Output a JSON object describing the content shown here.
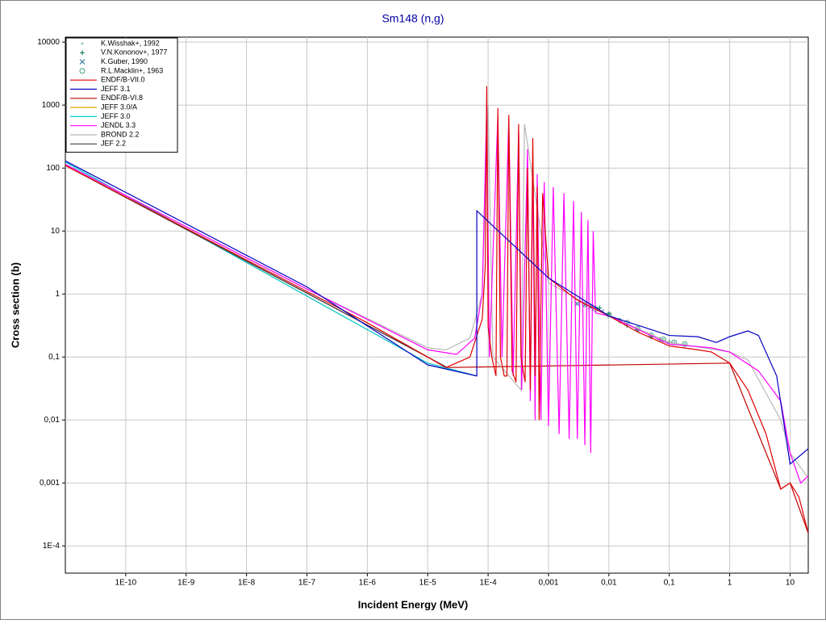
{
  "chart_data": {
    "type": "line",
    "title": "Sm148 (n,g)",
    "x_label": "Incident Energy (MeV)",
    "y_label": "Cross section (b)",
    "xscale": "log",
    "yscale": "log",
    "grid": true,
    "legend": "upper left",
    "xlim": [
      1e-11,
      20
    ],
    "ylim": [
      3.7e-05,
      12000
    ],
    "xticks": [
      {
        "value": 1e-10,
        "label": "1E-10"
      },
      {
        "value": 1e-09,
        "label": "1E-9"
      },
      {
        "value": 1e-08,
        "label": "1E-8"
      },
      {
        "value": 1e-07,
        "label": "1E-7"
      },
      {
        "value": 1e-06,
        "label": "1E-6"
      },
      {
        "value": 1e-05,
        "label": "1E-5"
      },
      {
        "value": 0.0001,
        "label": "1E-4"
      },
      {
        "value": 0.001,
        "label": "0,001"
      },
      {
        "value": 0.01,
        "label": "0,01"
      },
      {
        "value": 0.1,
        "label": "0,1"
      },
      1,
      10
    ],
    "yticks": [
      {
        "value": 0.0001,
        "label": "1E-4"
      },
      {
        "value": 0.001,
        "label": "0,001"
      },
      {
        "value": 0.01,
        "label": "0,01"
      },
      {
        "value": 0.1,
        "label": "0,1"
      },
      1,
      10,
      100,
      1000,
      10000
    ],
    "series": [
      {
        "name": "K.Wisshak+, 1992",
        "type": "scatter",
        "marker": "dot",
        "color": "#9cc4c4",
        "x": [
          0.004,
          0.006,
          0.008,
          0.01,
          0.015,
          0.02,
          0.03,
          0.05,
          0.08,
          0.12,
          0.18
        ],
        "values": [
          0.7,
          0.62,
          0.55,
          0.5,
          0.4,
          0.34,
          0.28,
          0.22,
          0.19,
          0.17,
          0.16
        ]
      },
      {
        "name": "V.N.Kononov+, 1977",
        "type": "scatter",
        "marker": "plus",
        "color": "#208060",
        "x": [
          0.005,
          0.007,
          0.01,
          0.015,
          0.02,
          0.03,
          0.05,
          0.07,
          0.1
        ],
        "values": [
          0.65,
          0.6,
          0.48,
          0.38,
          0.32,
          0.27,
          0.21,
          0.19,
          0.17
        ]
      },
      {
        "name": "K.Guber, 1990",
        "type": "scatter",
        "marker": "x",
        "color": "#4080a0",
        "x": [
          0.003,
          0.004,
          0.005
        ],
        "values": [
          0.7,
          0.68,
          0.62
        ]
      },
      {
        "name": "R.L.Macklin+, 1963",
        "type": "scatter",
        "marker": "circle",
        "color": "#40a080",
        "x": [
          0.004,
          0.006,
          0.01,
          0.02,
          0.03,
          0.05,
          0.08,
          0.12,
          0.18
        ],
        "values": [
          0.68,
          0.58,
          0.47,
          0.35,
          0.28,
          0.22,
          0.19,
          0.17,
          0.16
        ]
      },
      {
        "name": "ENDF/B-VI.8",
        "type": "line",
        "color": "#c00000",
        "x": [
          1e-11,
          1e-05,
          2e-05,
          1,
          7,
          10,
          20
        ],
        "values": [
          110,
          0.1,
          0.068,
          0.08,
          0.0008,
          0.001,
          0.00016
        ]
      },
      {
        "name": "JEFF 3.0/A",
        "type": "line",
        "color": "#e0a000",
        "x": [
          1e-11,
          1e-05,
          6.5e-05
        ],
        "values": [
          125,
          0.08,
          0.05
        ]
      },
      {
        "name": "JEFF 3.0",
        "type": "line",
        "color": "#00d0e0",
        "x": [
          1e-11,
          1e-05,
          6.5e-05
        ],
        "values": [
          125,
          0.08,
          0.05
        ]
      },
      {
        "name": "JEF 2.2",
        "type": "line",
        "color": "#404040",
        "x": [
          1e-11,
          1e-05,
          2e-05
        ],
        "values": [
          110,
          0.1,
          0.07
        ]
      },
      {
        "name": "BROND 2.2",
        "type": "line",
        "color": "#b8b8b8",
        "x": [
          1e-11,
          1e-07,
          1e-05,
          2e-05,
          5e-05,
          8e-05,
          0.0001,
          0.00012,
          0.00035,
          0.0004,
          0.001,
          0.01,
          0.1,
          1,
          2,
          7,
          10,
          20
        ],
        "values": [
          115,
          1.2,
          0.14,
          0.13,
          0.2,
          1,
          1000,
          0.1,
          0.03,
          500,
          1.5,
          0.45,
          0.17,
          0.12,
          0.09,
          0.01,
          0.003,
          0.0012
        ]
      },
      {
        "name": "JENDL 3.3",
        "type": "line",
        "color": "#ff00ff",
        "x": [
          1e-11,
          1e-07,
          1e-05,
          3e-05,
          6e-05,
          8e-05,
          9.5e-05,
          0.000105,
          0.000145,
          0.00017,
          0.00022,
          0.00026,
          0.00032,
          0.00036,
          0.00045,
          0.0005,
          0.00055,
          0.0006,
          0.00065,
          0.00075,
          0.00085,
          0.001,
          0.0012,
          0.0015,
          0.0018,
          0.0022,
          0.0026,
          0.003,
          0.0035,
          0.004,
          0.0045,
          0.005,
          0.0055,
          0.006,
          0.01,
          0.1,
          0.5,
          1,
          3,
          7,
          10,
          15,
          20
        ],
        "values": [
          115,
          1.2,
          0.13,
          0.11,
          0.2,
          1,
          1000,
          0.1,
          700,
          0.1,
          600,
          0.05,
          400,
          0.03,
          200,
          0.02,
          100,
          0.01,
          80,
          0.01,
          60,
          0.008,
          50,
          0.006,
          40,
          0.005,
          30,
          0.005,
          20,
          0.004,
          15,
          0.003,
          10,
          0.5,
          0.45,
          0.16,
          0.14,
          0.12,
          0.06,
          0.02,
          0.003,
          0.001,
          0.0013
        ]
      },
      {
        "name": "ENDF/B-VII.0",
        "type": "line",
        "color": "#e00000",
        "x": [
          1e-11,
          1e-09,
          1e-07,
          1e-06,
          1e-05,
          2e-05,
          5e-05,
          8e-05,
          9e-05,
          9.5e-05,
          0.0001,
          0.000115,
          0.000135,
          0.000145,
          0.00016,
          0.000185,
          0.000205,
          0.00022,
          0.00025,
          0.00029,
          0.00032,
          0.00035,
          0.00041,
          0.00045,
          0.0005,
          0.00055,
          0.0006,
          0.00065,
          0.0007,
          0.0008,
          0.001,
          0.003,
          0.01,
          0.03,
          0.1,
          0.3,
          0.5,
          1,
          2,
          4,
          7,
          10,
          14,
          20
        ],
        "values": [
          110,
          11,
          1.1,
          0.35,
          0.1,
          0.068,
          0.1,
          0.4,
          3,
          2000,
          0.3,
          0.1,
          0.05,
          900,
          0.1,
          0.05,
          0.05,
          700,
          0.06,
          0.04,
          500,
          0.1,
          0.04,
          100,
          0.03,
          300,
          0.05,
          50,
          0.01,
          40,
          1.8,
          0.8,
          0.45,
          0.25,
          0.15,
          0.13,
          0.12,
          0.08,
          0.03,
          0.006,
          0.0008,
          0.001,
          0.0006,
          0.00016
        ]
      },
      {
        "name": "JEFF 3.1",
        "type": "line",
        "color": "#0000c0",
        "x": [
          1e-11,
          1e-07,
          1e-05,
          6.5e-05,
          6.5e-05,
          0.001,
          0.01,
          0.1,
          0.3,
          0.6,
          1,
          2,
          3,
          6,
          10,
          20
        ],
        "values": [
          130,
          1.3,
          0.075,
          0.05,
          21,
          1.8,
          0.45,
          0.22,
          0.21,
          0.17,
          0.21,
          0.26,
          0.22,
          0.05,
          0.002,
          0.0035
        ]
      }
    ],
    "legend_order": [
      0,
      1,
      2,
      3,
      10,
      11,
      4,
      5,
      6,
      9,
      8,
      7
    ]
  }
}
